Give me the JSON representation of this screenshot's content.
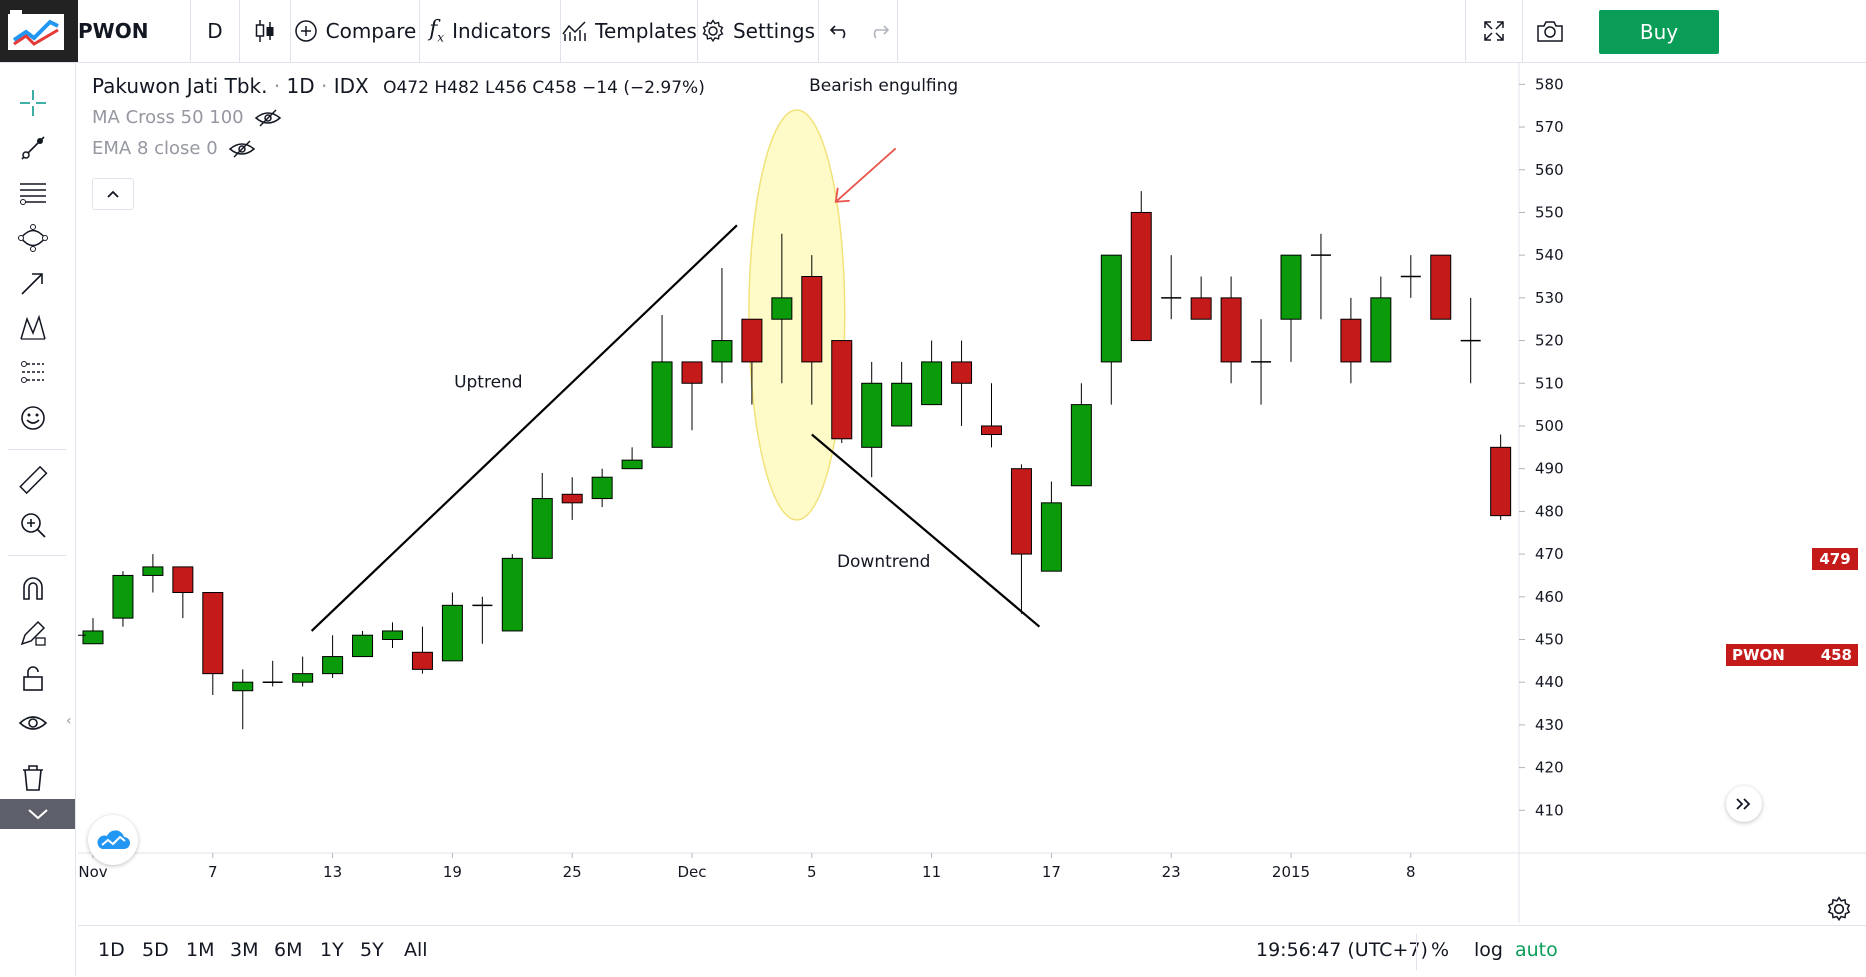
{
  "toolbar": {
    "symbol": "PWON",
    "interval": "D",
    "compare": "Compare",
    "indicators": "Indicators",
    "templates": "Templates",
    "settings": "Settings",
    "buy": "Buy",
    "buy_color": "#0a9d58"
  },
  "legend": {
    "name": "Pakuwon Jati Tbk.",
    "interval": "1D",
    "exchange": "IDX",
    "o": "O472",
    "h": "H482",
    "l": "L456",
    "c": "C458",
    "change": "−14 (−2.97%)",
    "ma_cross": "MA Cross 50 100",
    "ema": "EMA 8 close 0"
  },
  "price_tags": {
    "last_close": "479",
    "symbol": "PWON",
    "symbol_price": "458",
    "tag_color": "#c41a1a"
  },
  "bottombar": {
    "ranges": [
      "1D",
      "5D",
      "1M",
      "3M",
      "6M",
      "1Y",
      "5Y",
      "All"
    ],
    "clock": "19:56:47 (UTC+7)",
    "percent": "%",
    "log": "log",
    "auto": "auto"
  },
  "chart_data": {
    "type": "candlestick",
    "colors": {
      "up": "#0a9a0a",
      "down": "#c41a1a",
      "annotation_arrow": "#e8534a",
      "highlight": "#fff79a"
    },
    "ylim": [
      400,
      585
    ],
    "y_ticks": [
      410,
      420,
      430,
      440,
      450,
      460,
      470,
      480,
      490,
      500,
      510,
      520,
      530,
      540,
      550,
      560,
      570,
      580
    ],
    "x_ticks": [
      {
        "bar": 0,
        "label": "Nov"
      },
      {
        "bar": 4,
        "label": "7"
      },
      {
        "bar": 8,
        "label": "13"
      },
      {
        "bar": 12,
        "label": "19"
      },
      {
        "bar": 16,
        "label": "25"
      },
      {
        "bar": 20,
        "label": "Dec"
      },
      {
        "bar": 24,
        "label": "5"
      },
      {
        "bar": 28,
        "label": "11"
      },
      {
        "bar": 32,
        "label": "17"
      },
      {
        "bar": 36,
        "label": "23"
      },
      {
        "bar": 40,
        "label": "2015"
      },
      {
        "bar": 44,
        "label": "8"
      }
    ],
    "candles": [
      {
        "o": 449,
        "h": 455,
        "l": 449,
        "c": 452
      },
      {
        "o": 455,
        "h": 466,
        "l": 453,
        "c": 465
      },
      {
        "o": 465,
        "h": 470,
        "l": 461,
        "c": 467
      },
      {
        "o": 467,
        "h": 467,
        "l": 455,
        "c": 461
      },
      {
        "o": 461,
        "h": 461,
        "l": 437,
        "c": 442
      },
      {
        "o": 438,
        "h": 443,
        "l": 429,
        "c": 440
      },
      {
        "o": 440,
        "h": 445,
        "l": 439,
        "c": 440
      },
      {
        "o": 440,
        "h": 446,
        "l": 439,
        "c": 442
      },
      {
        "o": 442,
        "h": 451,
        "l": 441,
        "c": 446
      },
      {
        "o": 446,
        "h": 452,
        "l": 446,
        "c": 451
      },
      {
        "o": 450,
        "h": 454,
        "l": 448,
        "c": 452
      },
      {
        "o": 447,
        "h": 453,
        "l": 442,
        "c": 443
      },
      {
        "o": 445,
        "h": 461,
        "l": 445,
        "c": 458
      },
      {
        "o": 458,
        "h": 460,
        "l": 449,
        "c": 458
      },
      {
        "o": 452,
        "h": 470,
        "l": 452,
        "c": 469
      },
      {
        "o": 469,
        "h": 489,
        "l": 469,
        "c": 483
      },
      {
        "o": 484,
        "h": 488,
        "l": 478,
        "c": 482
      },
      {
        "o": 483,
        "h": 490,
        "l": 481,
        "c": 488
      },
      {
        "o": 490,
        "h": 495,
        "l": 490,
        "c": 492
      },
      {
        "o": 495,
        "h": 526,
        "l": 495,
        "c": 515
      },
      {
        "o": 515,
        "h": 515,
        "l": 499,
        "c": 510
      },
      {
        "o": 515,
        "h": 537,
        "l": 510,
        "c": 520
      },
      {
        "o": 525,
        "h": 525,
        "l": 505,
        "c": 515
      },
      {
        "o": 525,
        "h": 545,
        "l": 510,
        "c": 530
      },
      {
        "o": 535,
        "h": 540,
        "l": 505,
        "c": 515
      },
      {
        "o": 520,
        "h": 520,
        "l": 496,
        "c": 497
      },
      {
        "o": 495,
        "h": 515,
        "l": 488,
        "c": 510
      },
      {
        "o": 500,
        "h": 515,
        "l": 500,
        "c": 510
      },
      {
        "o": 505,
        "h": 520,
        "l": 505,
        "c": 515
      },
      {
        "o": 515,
        "h": 520,
        "l": 500,
        "c": 510
      },
      {
        "o": 500,
        "h": 510,
        "l": 495,
        "c": 498
      },
      {
        "o": 490,
        "h": 491,
        "l": 456,
        "c": 470
      },
      {
        "o": 466,
        "h": 487,
        "l": 466,
        "c": 482
      },
      {
        "o": 486,
        "h": 510,
        "l": 486,
        "c": 505
      },
      {
        "o": 515,
        "h": 540,
        "l": 505,
        "c": 540
      },
      {
        "o": 550,
        "h": 555,
        "l": 520,
        "c": 520
      },
      {
        "o": 530,
        "h": 540,
        "l": 525,
        "c": 530
      },
      {
        "o": 530,
        "h": 535,
        "l": 525,
        "c": 525
      },
      {
        "o": 530,
        "h": 535,
        "l": 510,
        "c": 515
      },
      {
        "o": 515,
        "h": 525,
        "l": 505,
        "c": 515
      },
      {
        "o": 525,
        "h": 540,
        "l": 515,
        "c": 540
      },
      {
        "o": 540,
        "h": 545,
        "l": 525,
        "c": 540
      },
      {
        "o": 525,
        "h": 530,
        "l": 510,
        "c": 515
      },
      {
        "o": 515,
        "h": 535,
        "l": 515,
        "c": 530
      },
      {
        "o": 535,
        "h": 540,
        "l": 530,
        "c": 535
      },
      {
        "o": 540,
        "h": 540,
        "l": 525,
        "c": 525
      },
      {
        "o": 520,
        "h": 530,
        "l": 510,
        "c": 520
      },
      {
        "o": 495,
        "h": 498,
        "l": 478,
        "c": 479
      }
    ],
    "annotations": {
      "uptrend": "Uptrend",
      "downtrend": "Downtrend",
      "bearish_engulfing": "Bearish engulfing",
      "uptrend_line": {
        "from": {
          "bar": 7.3,
          "price": 452
        },
        "to": {
          "bar": 21.5,
          "price": 547
        }
      },
      "downtrend_line": {
        "from": {
          "bar": 24.0,
          "price": 498
        },
        "to": {
          "bar": 31.6,
          "price": 453
        }
      },
      "highlight": {
        "bar": 23.5,
        "price": 526,
        "bar_span": 1.6,
        "price_span": 48
      }
    }
  }
}
